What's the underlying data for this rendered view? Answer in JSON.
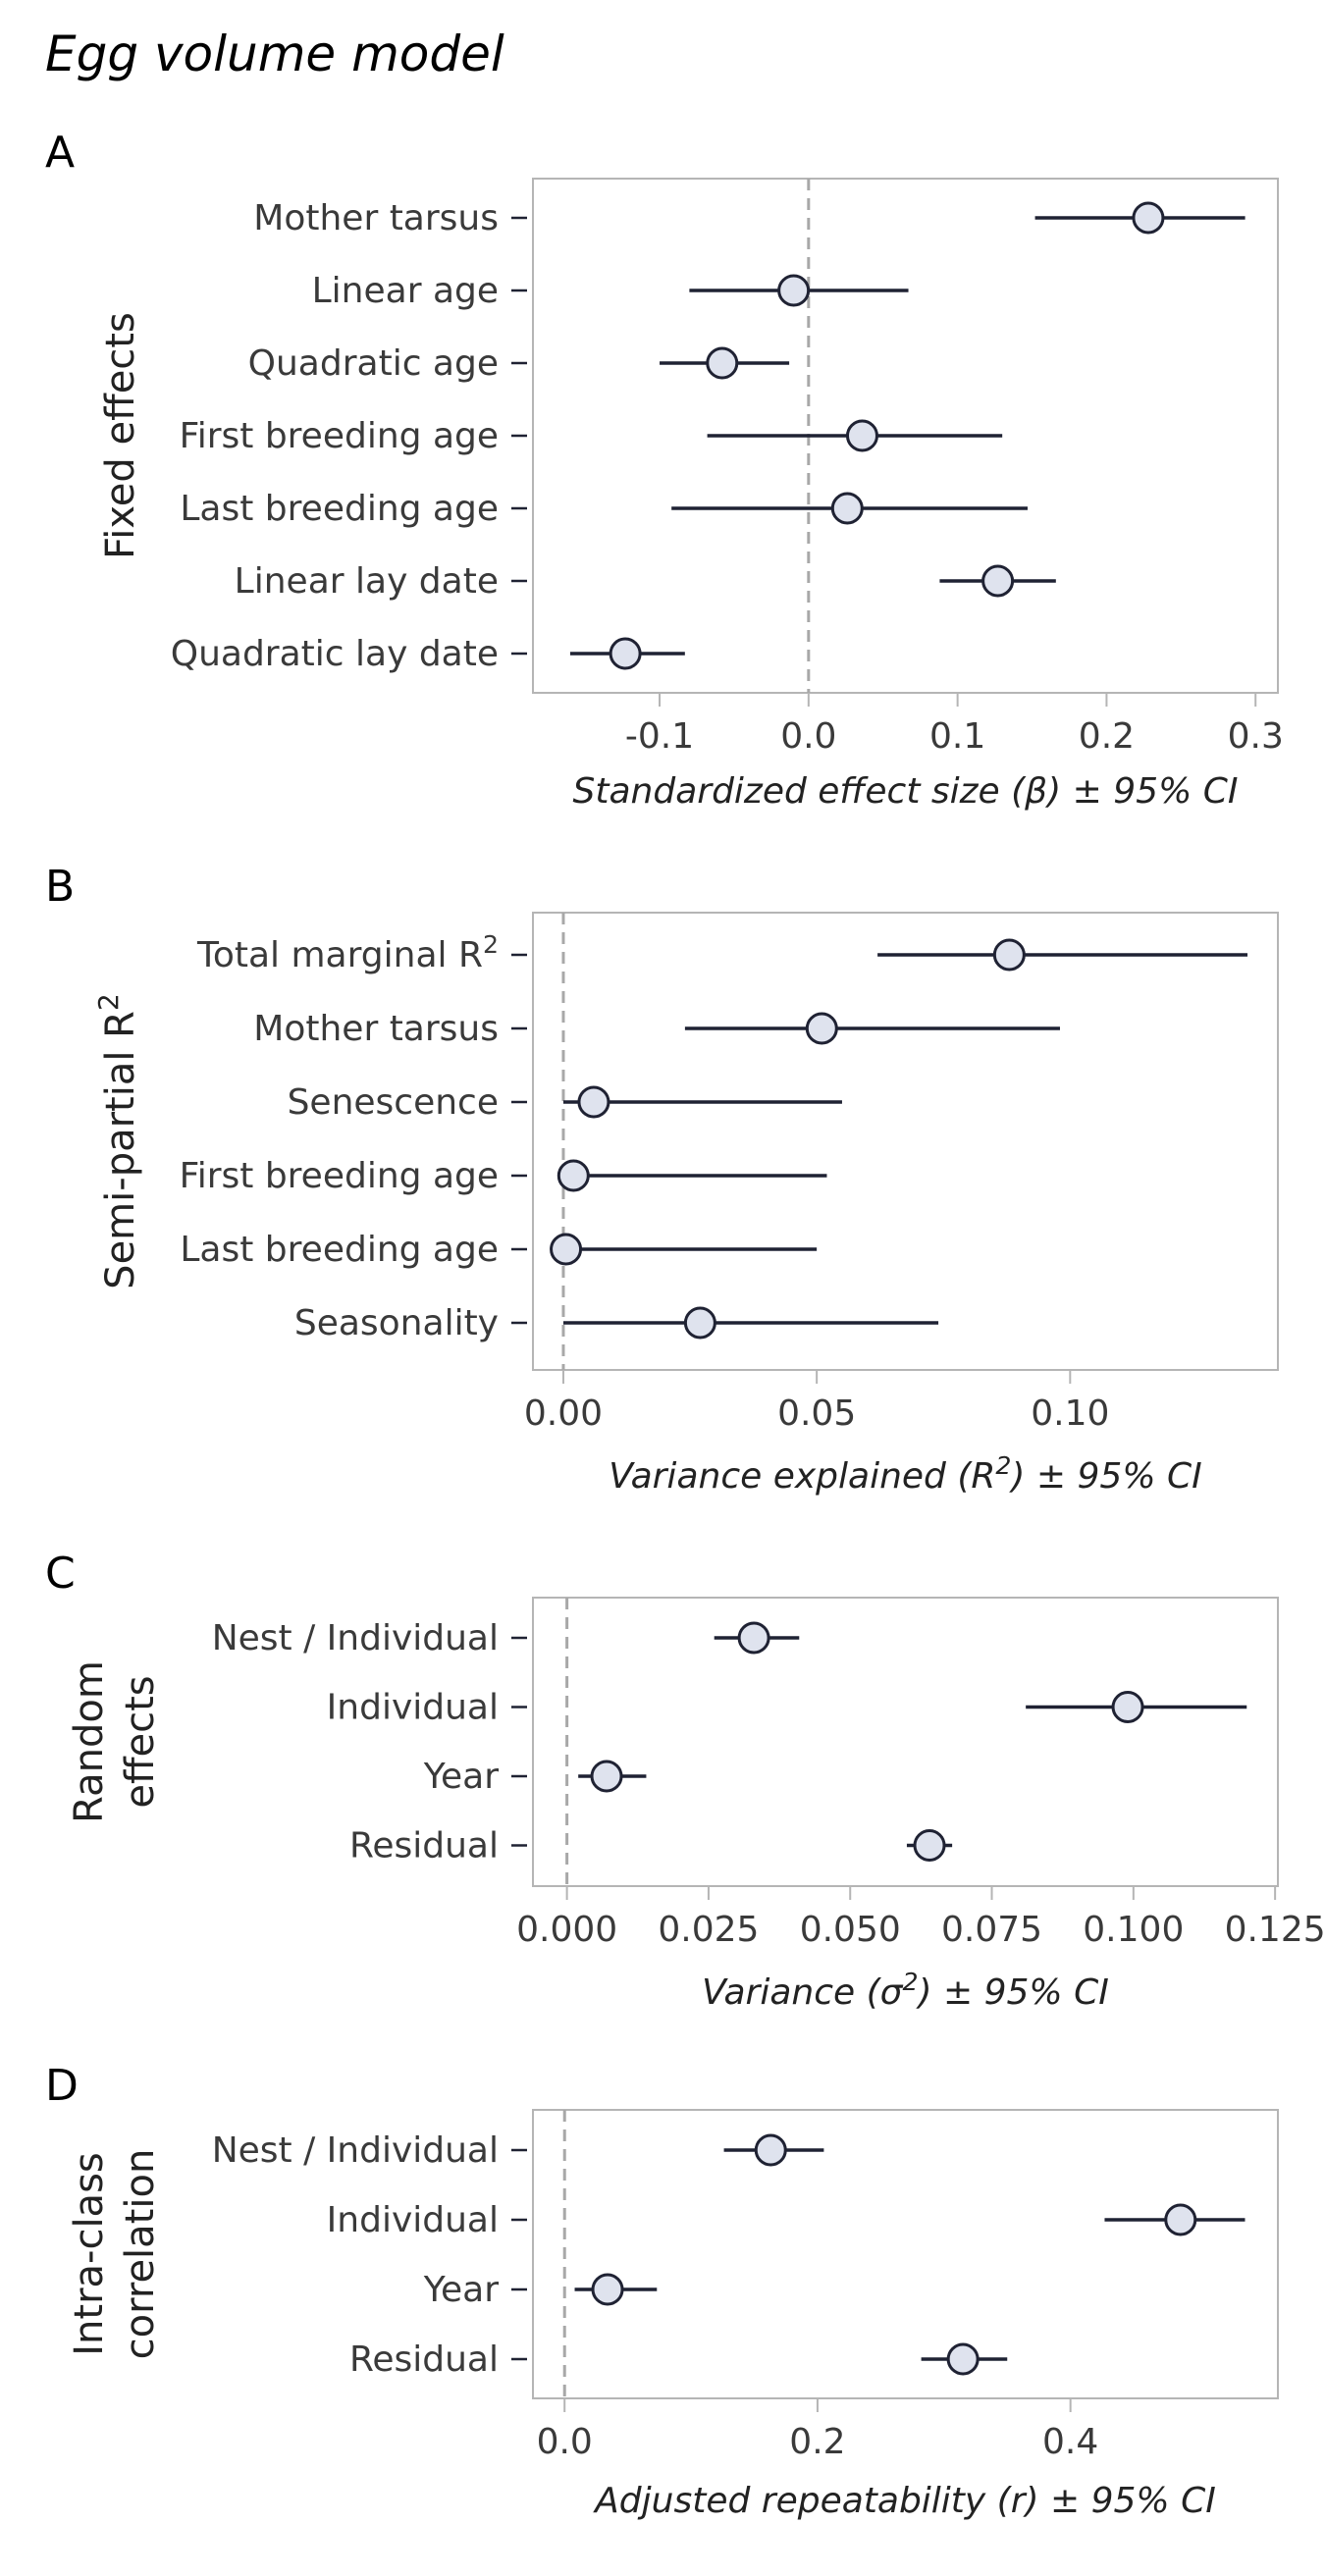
{
  "title": "Egg volume model",
  "chart_data": [
    {
      "type": "scatter",
      "panel": "A",
      "ylabel": "Fixed effects",
      "ylabel_lines": [
        "Fixed effects"
      ],
      "xlabel": "Standardized effect size (β) ± 95% CI",
      "xlim": [
        -0.185,
        0.315
      ],
      "xticks": [
        -0.1,
        0.0,
        0.1,
        0.2,
        0.3
      ],
      "xtick_labels": [
        "-0.1",
        "0.0",
        "0.1",
        "0.2",
        "0.3"
      ],
      "reference_x": 0,
      "categories": [
        "Mother tarsus",
        "Linear age",
        "Quadratic age",
        "First breeding age",
        "Last breeding age",
        "Linear lay date",
        "Quadratic lay date"
      ],
      "values": [
        0.228,
        -0.01,
        -0.058,
        0.036,
        0.026,
        0.127,
        -0.123
      ],
      "ci_low": [
        0.152,
        -0.08,
        -0.1,
        -0.068,
        -0.092,
        0.088,
        -0.16
      ],
      "ci_high": [
        0.293,
        0.067,
        -0.013,
        0.13,
        0.147,
        0.166,
        -0.083
      ]
    },
    {
      "type": "scatter",
      "panel": "B",
      "ylabel": "Semi-partial R²",
      "ylabel_lines": [
        "Semi-partial R²"
      ],
      "xlabel": "Variance explained (R²) ± 95% CI",
      "xlim": [
        -0.006,
        0.141
      ],
      "xticks": [
        0.0,
        0.05,
        0.1
      ],
      "xtick_labels": [
        "0.00",
        "0.05",
        "0.10"
      ],
      "reference_x": 0,
      "categories": [
        "Total marginal R²",
        "Mother tarsus",
        "Senescence",
        "First breeding age",
        "Last breeding age",
        "Seasonality"
      ],
      "values": [
        0.088,
        0.051,
        0.006,
        0.002,
        0.0005,
        0.027
      ],
      "ci_low": [
        0.062,
        0.024,
        0.0,
        0.0,
        0.0,
        0.0
      ],
      "ci_high": [
        0.135,
        0.098,
        0.055,
        0.052,
        0.05,
        0.074
      ]
    },
    {
      "type": "scatter",
      "panel": "C",
      "ylabel": "Random effects",
      "ylabel_lines": [
        "Random",
        "effects"
      ],
      "xlabel": "Variance (σ²) ± 95% CI",
      "xlim": [
        -0.006,
        0.1255
      ],
      "xticks": [
        0.0,
        0.025,
        0.05,
        0.075,
        0.1,
        0.125
      ],
      "xtick_labels": [
        "0.000",
        "0.025",
        "0.050",
        "0.075",
        "0.100",
        "0.125"
      ],
      "reference_x": 0,
      "categories": [
        "Nest / Individual",
        "Individual",
        "Year",
        "Residual"
      ],
      "values": [
        0.033,
        0.099,
        0.007,
        0.064
      ],
      "ci_low": [
        0.026,
        0.081,
        0.002,
        0.06
      ],
      "ci_high": [
        0.041,
        0.12,
        0.014,
        0.068
      ]
    },
    {
      "type": "scatter",
      "panel": "D",
      "ylabel": "Intra-class correlation",
      "ylabel_lines": [
        "Intra-class",
        "correlation"
      ],
      "xlabel": "Adjusted repeatability (r) ± 95% CI",
      "xlim": [
        -0.025,
        0.564
      ],
      "xticks": [
        0.0,
        0.2,
        0.4
      ],
      "xtick_labels": [
        "0.0",
        "0.2",
        "0.4"
      ],
      "reference_x": 0,
      "categories": [
        "Nest / Individual",
        "Individual",
        "Year",
        "Residual"
      ],
      "values": [
        0.163,
        0.487,
        0.034,
        0.315
      ],
      "ci_low": [
        0.126,
        0.427,
        0.008,
        0.282
      ],
      "ci_high": [
        0.205,
        0.538,
        0.073,
        0.35
      ]
    }
  ],
  "colors": {
    "point_fill": "#dfe3ee",
    "line": "#1f2233",
    "reference": "#a8a8a8",
    "frame": "#b5b5b5",
    "text": "#3a3a3a"
  }
}
